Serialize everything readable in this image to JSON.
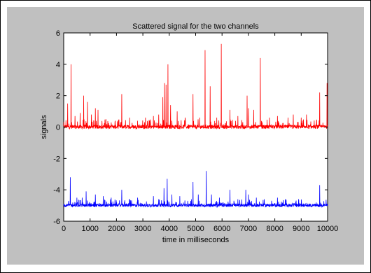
{
  "chart_data": {
    "type": "line",
    "title": "Scattered signal for the two channels",
    "xlabel": "time in milliseconds",
    "ylabel": "signals",
    "xlim": [
      0,
      10000
    ],
    "ylim": [
      -6,
      6
    ],
    "xticks": [
      0,
      1000,
      2000,
      3000,
      4000,
      5000,
      6000,
      7000,
      8000,
      9000,
      10000
    ],
    "yticks": [
      -6,
      -4,
      -2,
      0,
      2,
      4,
      6
    ],
    "grid": false,
    "series": [
      {
        "color": "#ff0000",
        "baseline": 0,
        "noise": 0.12,
        "spikes": [
          [
            150,
            1.5
          ],
          [
            280,
            4.0
          ],
          [
            430,
            0.7
          ],
          [
            620,
            0.9
          ],
          [
            760,
            2.0
          ],
          [
            900,
            1.6
          ],
          [
            1050,
            0.8
          ],
          [
            1200,
            1.2
          ],
          [
            1300,
            1.1
          ],
          [
            1600,
            0.5
          ],
          [
            1950,
            0.4
          ],
          [
            2200,
            2.1
          ],
          [
            2500,
            0.6
          ],
          [
            2800,
            0.4
          ],
          [
            3100,
            0.6
          ],
          [
            3400,
            0.7
          ],
          [
            3600,
            0.8
          ],
          [
            3760,
            1.9
          ],
          [
            3820,
            2.8
          ],
          [
            3880,
            2.7
          ],
          [
            3950,
            4.0
          ],
          [
            4050,
            1.4
          ],
          [
            4300,
            1.0
          ],
          [
            4600,
            0.6
          ],
          [
            4900,
            2.1
          ],
          [
            5150,
            0.6
          ],
          [
            5360,
            4.9
          ],
          [
            5550,
            2.6
          ],
          [
            5800,
            0.6
          ],
          [
            5970,
            5.3
          ],
          [
            6300,
            1.1
          ],
          [
            6600,
            0.7
          ],
          [
            6950,
            2.0
          ],
          [
            7000,
            1.2
          ],
          [
            7200,
            1.1
          ],
          [
            7450,
            4.4
          ],
          [
            7800,
            0.6
          ],
          [
            8100,
            0.7
          ],
          [
            8500,
            0.6
          ],
          [
            8700,
            0.8
          ],
          [
            9000,
            0.6
          ],
          [
            9200,
            0.8
          ],
          [
            9700,
            2.2
          ],
          [
            9980,
            2.8
          ]
        ]
      },
      {
        "color": "#0000ff",
        "baseline": -5,
        "noise": 0.1,
        "spikes": [
          [
            250,
            -3.2
          ],
          [
            500,
            -4.5
          ],
          [
            700,
            -4.5
          ],
          [
            850,
            -4.1
          ],
          [
            1200,
            -4.3
          ],
          [
            1500,
            -4.4
          ],
          [
            1800,
            -4.5
          ],
          [
            2200,
            -4.0
          ],
          [
            2500,
            -4.6
          ],
          [
            2800,
            -4.5
          ],
          [
            3400,
            -4.4
          ],
          [
            3600,
            -4.6
          ],
          [
            3800,
            -3.9
          ],
          [
            3920,
            -3.3
          ],
          [
            4100,
            -4.3
          ],
          [
            4400,
            -4.4
          ],
          [
            4700,
            -4.7
          ],
          [
            4900,
            -3.5
          ],
          [
            5100,
            -4.3
          ],
          [
            5400,
            -2.8
          ],
          [
            5600,
            -4.3
          ],
          [
            5900,
            -4.5
          ],
          [
            6300,
            -4.0
          ],
          [
            6600,
            -4.6
          ],
          [
            6900,
            -4.0
          ],
          [
            7000,
            -4.3
          ],
          [
            7300,
            -4.5
          ],
          [
            7600,
            -4.6
          ],
          [
            8100,
            -4.5
          ],
          [
            8400,
            -4.6
          ],
          [
            8900,
            -4.6
          ],
          [
            9700,
            -3.7
          ]
        ]
      }
    ]
  }
}
